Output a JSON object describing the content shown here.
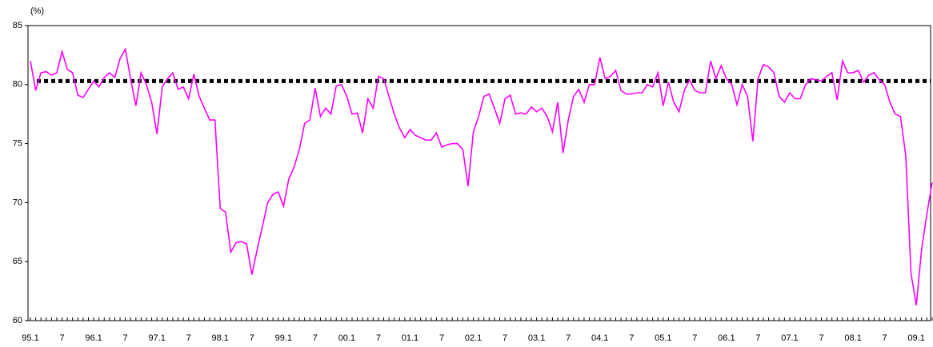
{
  "chart_data": {
    "type": "line",
    "y_unit": "(%)",
    "categories": [
      "95.1",
      null,
      null,
      null,
      null,
      null,
      "7",
      null,
      null,
      null,
      null,
      null,
      "96.1",
      null,
      null,
      null,
      null,
      null,
      "7",
      null,
      null,
      null,
      null,
      null,
      "97.1",
      null,
      null,
      null,
      null,
      null,
      "7",
      null,
      null,
      null,
      null,
      null,
      "98.1",
      null,
      null,
      null,
      null,
      null,
      "7",
      null,
      null,
      null,
      null,
      null,
      "99.1",
      null,
      null,
      null,
      null,
      null,
      "7",
      null,
      null,
      null,
      null,
      null,
      "00.1",
      null,
      null,
      null,
      null,
      null,
      "7",
      null,
      null,
      null,
      null,
      null,
      "01.1",
      null,
      null,
      null,
      null,
      null,
      "7",
      null,
      null,
      null,
      null,
      null,
      "02.1",
      null,
      null,
      null,
      null,
      null,
      "7",
      null,
      null,
      null,
      null,
      null,
      "03.1",
      null,
      null,
      null,
      null,
      null,
      "7",
      null,
      null,
      null,
      null,
      null,
      "04.1",
      null,
      null,
      null,
      null,
      null,
      "7",
      null,
      null,
      null,
      null,
      null,
      "05.1",
      null,
      null,
      null,
      null,
      null,
      "7",
      null,
      null,
      null,
      null,
      null,
      "06.1",
      null,
      null,
      null,
      null,
      null,
      "7",
      null,
      null,
      null,
      null,
      null,
      "07.1",
      null,
      null,
      null,
      null,
      null,
      "7",
      null,
      null,
      null,
      null,
      null,
      "08.1",
      null,
      null,
      null,
      null,
      null,
      "7",
      null,
      null,
      null,
      null,
      null,
      "09.1",
      null,
      null,
      null
    ],
    "series": [
      {
        "color": "#ff00ff",
        "values": [
          82.0,
          79.5,
          81.0,
          81.1,
          80.8,
          81.0,
          82.8,
          81.3,
          81.0,
          79.1,
          78.9,
          79.6,
          80.3,
          79.8,
          80.6,
          81.0,
          80.6,
          82.2,
          83.0,
          80.5,
          78.2,
          81.0,
          80.0,
          78.5,
          75.8,
          79.8,
          80.5,
          81.0,
          79.6,
          79.8,
          78.8,
          80.9,
          79.0,
          78.0,
          77.0,
          77.0,
          69.5,
          69.2,
          65.8,
          66.6,
          66.7,
          66.5,
          63.9,
          66.0,
          68.0,
          70.0,
          70.7,
          70.9,
          69.7,
          72.0,
          73.0,
          74.5,
          76.7,
          77.0,
          79.7,
          77.3,
          78.0,
          77.5,
          79.9,
          80.0,
          79.0,
          77.5,
          77.6,
          75.9,
          78.8,
          78.0,
          80.7,
          80.5,
          79.0,
          77.5,
          76.3,
          75.5,
          76.2,
          75.7,
          75.5,
          75.3,
          75.3,
          75.9,
          74.7,
          74.9,
          75.0,
          75.0,
          74.5,
          71.4,
          76.0,
          77.3,
          79.0,
          79.2,
          78.0,
          76.7,
          78.8,
          79.1,
          77.5,
          77.6,
          77.5,
          78.1,
          77.7,
          78.0,
          77.3,
          76.0,
          78.5,
          74.2,
          77.0,
          79.0,
          79.6,
          78.5,
          80.0,
          80.0,
          82.3,
          80.5,
          80.7,
          81.2,
          79.5,
          79.2,
          79.2,
          79.3,
          79.3,
          80.0,
          79.8,
          81.0,
          78.2,
          80.2,
          78.5,
          77.7,
          79.5,
          80.4,
          79.5,
          79.3,
          79.3,
          82.0,
          80.5,
          81.6,
          80.5,
          80.0,
          78.3,
          80.0,
          79.0,
          75.2,
          80.5,
          81.7,
          81.5,
          81.0,
          79.0,
          78.5,
          79.3,
          78.8,
          78.8,
          80.0,
          80.5,
          80.4,
          80.3,
          80.7,
          81.0,
          78.7,
          82.0,
          81.0,
          81.0,
          81.2,
          80.2,
          80.8,
          81.0,
          80.4,
          80.0,
          78.5,
          77.5,
          77.3,
          74.0,
          64.0,
          61.3,
          66.0,
          69.0,
          71.7
        ]
      }
    ],
    "reference_line": {
      "value": 80.3,
      "color": "#000000"
    },
    "ylim": [
      60,
      85
    ],
    "yticks": [
      60,
      65,
      70,
      75,
      80,
      85
    ]
  }
}
